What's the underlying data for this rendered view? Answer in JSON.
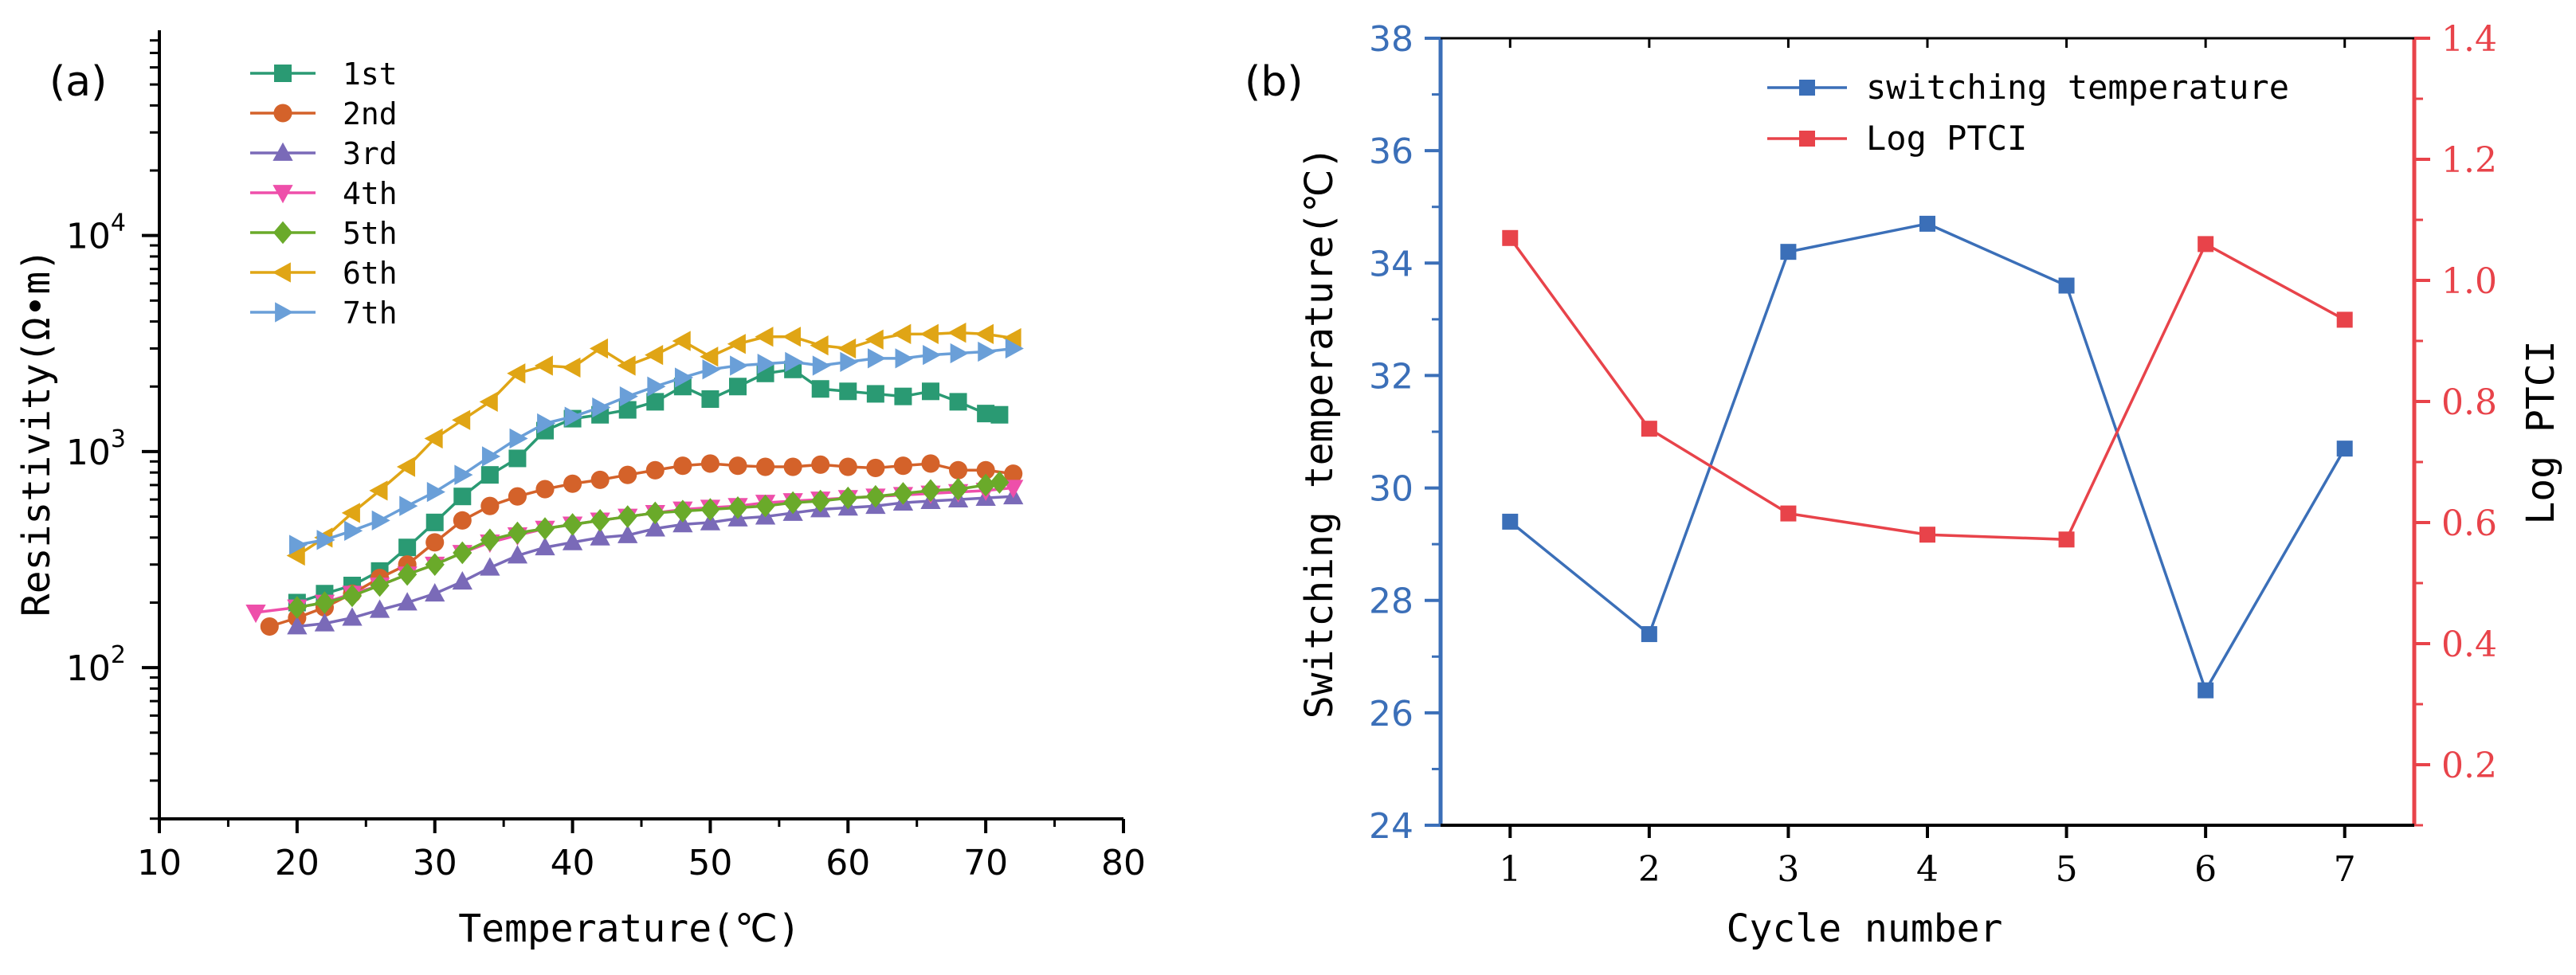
{
  "chart_data": [
    {
      "type": "line",
      "panel_label": "(a)",
      "xlabel": "Temperature(℃)",
      "ylabel": "Resistivity(Ω•m)",
      "xlim": [
        10,
        80
      ],
      "ylim_log10": [
        1.3,
        4.95
      ],
      "y_scale": "log",
      "x_ticks": [
        "10",
        "20",
        "30",
        "40",
        "50",
        "60",
        "70",
        "80"
      ],
      "x_tick_values": [
        10,
        20,
        30,
        40,
        50,
        60,
        70,
        80
      ],
      "y_ticks": [
        {
          "base": "10",
          "exp": "2",
          "log": 2
        },
        {
          "base": "10",
          "exp": "3",
          "log": 3
        },
        {
          "base": "10",
          "exp": "4",
          "log": 4
        }
      ],
      "legend_position": "top-left",
      "series": [
        {
          "name": "1st",
          "color": "#2a9a73",
          "marker": "square",
          "x": [
            20,
            22,
            24,
            26,
            28,
            30,
            32,
            34,
            36,
            38,
            40,
            42,
            44,
            46,
            48,
            50,
            52,
            54,
            56,
            58,
            60,
            62,
            64,
            66,
            68,
            70,
            71
          ],
          "y": [
            200,
            220,
            240,
            280,
            360,
            470,
            620,
            780,
            930,
            1250,
            1420,
            1480,
            1560,
            1700,
            2000,
            1750,
            2000,
            2300,
            2400,
            1950,
            1900,
            1850,
            1800,
            1900,
            1700,
            1500,
            1480
          ]
        },
        {
          "name": "2nd",
          "color": "#d4622a",
          "marker": "circle",
          "x": [
            18,
            20,
            22,
            24,
            26,
            28,
            30,
            32,
            34,
            36,
            38,
            40,
            42,
            44,
            46,
            48,
            50,
            52,
            54,
            56,
            58,
            60,
            62,
            64,
            66,
            68,
            70,
            72
          ],
          "y": [
            155,
            170,
            190,
            220,
            260,
            300,
            380,
            480,
            560,
            620,
            670,
            710,
            740,
            780,
            820,
            860,
            880,
            860,
            850,
            850,
            870,
            850,
            840,
            860,
            880,
            820,
            820,
            790
          ]
        },
        {
          "name": "3rd",
          "color": "#7a6ab8",
          "marker": "triangle-up",
          "x": [
            20,
            22,
            24,
            26,
            28,
            30,
            32,
            34,
            36,
            38,
            40,
            42,
            44,
            46,
            48,
            50,
            52,
            54,
            56,
            58,
            60,
            62,
            64,
            66,
            68,
            70,
            72
          ],
          "y": [
            155,
            160,
            170,
            185,
            200,
            220,
            250,
            290,
            330,
            360,
            380,
            400,
            410,
            440,
            460,
            470,
            490,
            500,
            520,
            540,
            550,
            560,
            580,
            590,
            600,
            610,
            620
          ]
        },
        {
          "name": "4th",
          "color": "#ee4faa",
          "marker": "triangle-down",
          "x": [
            17,
            20,
            22,
            24,
            26,
            28,
            30,
            32,
            34,
            36,
            38,
            40,
            42,
            44,
            46,
            48,
            50,
            52,
            54,
            56,
            58,
            60,
            62,
            64,
            66,
            68,
            70,
            72
          ],
          "y": [
            180,
            190,
            200,
            220,
            240,
            270,
            300,
            340,
            380,
            410,
            440,
            460,
            480,
            500,
            520,
            540,
            550,
            560,
            580,
            590,
            600,
            610,
            620,
            630,
            640,
            650,
            660,
            680
          ]
        },
        {
          "name": "5th",
          "color": "#6aaa2a",
          "marker": "diamond",
          "x": [
            20,
            22,
            24,
            26,
            28,
            30,
            32,
            34,
            36,
            38,
            40,
            42,
            44,
            46,
            48,
            50,
            52,
            54,
            56,
            58,
            60,
            62,
            64,
            66,
            68,
            70,
            71
          ],
          "y": [
            190,
            200,
            215,
            240,
            270,
            300,
            340,
            390,
            420,
            440,
            460,
            480,
            500,
            520,
            530,
            540,
            550,
            560,
            580,
            590,
            610,
            620,
            640,
            660,
            670,
            700,
            720
          ]
        },
        {
          "name": "6th",
          "color": "#e0a515",
          "marker": "triangle-left",
          "x": [
            20,
            22,
            24,
            26,
            28,
            30,
            32,
            34,
            36,
            38,
            40,
            42,
            44,
            46,
            48,
            50,
            52,
            54,
            56,
            58,
            60,
            62,
            64,
            66,
            68,
            70,
            72
          ],
          "y": [
            330,
            400,
            520,
            660,
            850,
            1150,
            1400,
            1700,
            2300,
            2500,
            2450,
            3000,
            2500,
            2800,
            3250,
            2750,
            3150,
            3400,
            3400,
            3100,
            3000,
            3300,
            3500,
            3500,
            3550,
            3500,
            3350
          ]
        },
        {
          "name": "7th",
          "color": "#6a9fd8",
          "marker": "triangle-right",
          "x": [
            20,
            22,
            24,
            26,
            28,
            30,
            32,
            34,
            36,
            38,
            40,
            42,
            44,
            46,
            48,
            50,
            52,
            54,
            56,
            58,
            60,
            62,
            64,
            66,
            68,
            70,
            72
          ],
          "y": [
            370,
            390,
            430,
            480,
            560,
            650,
            780,
            950,
            1150,
            1350,
            1450,
            1600,
            1800,
            2000,
            2200,
            2400,
            2500,
            2550,
            2600,
            2500,
            2600,
            2700,
            2700,
            2800,
            2850,
            2900,
            3000
          ]
        }
      ]
    },
    {
      "type": "line",
      "panel_label": "(b)",
      "xlabel": "Cycle number",
      "ylabel": "Switching temperature(℃)",
      "ylabel_right": "Log PTCI",
      "xlim": [
        0.5,
        7.5
      ],
      "ylim": [
        24,
        38
      ],
      "ylim_right": [
        0.1,
        1.4
      ],
      "x_ticks": [
        "1",
        "2",
        "3",
        "4",
        "5",
        "6",
        "7"
      ],
      "x_tick_values": [
        1,
        2,
        3,
        4,
        5,
        6,
        7
      ],
      "y_ticks": [
        "24",
        "26",
        "28",
        "30",
        "32",
        "34",
        "36",
        "38"
      ],
      "y_tick_values": [
        24,
        26,
        28,
        30,
        32,
        34,
        36,
        38
      ],
      "y_ticks_right": [
        "0.2",
        "0.4",
        "0.6",
        "0.8",
        "1.0",
        "1.2",
        "1.4"
      ],
      "y_tick_values_right": [
        0.2,
        0.4,
        0.6,
        0.8,
        1.0,
        1.2,
        1.4
      ],
      "left_axis_color": "#3b6fb8",
      "right_axis_color": "#e8434a",
      "legend_position": "top-right",
      "series": [
        {
          "name": "switching temperature",
          "axis": "left",
          "color": "#3b6fb8",
          "marker": "square",
          "x": [
            1,
            2,
            3,
            4,
            5,
            6,
            7
          ],
          "y": [
            29.4,
            27.4,
            34.2,
            34.7,
            33.6,
            26.4,
            30.7
          ]
        },
        {
          "name": "Log PTCI",
          "axis": "right",
          "color": "#e8434a",
          "marker": "square",
          "x": [
            1,
            2,
            3,
            4,
            5,
            6,
            7
          ],
          "y": [
            1.07,
            0.755,
            0.615,
            0.58,
            0.572,
            1.06,
            0.935
          ]
        }
      ]
    }
  ]
}
